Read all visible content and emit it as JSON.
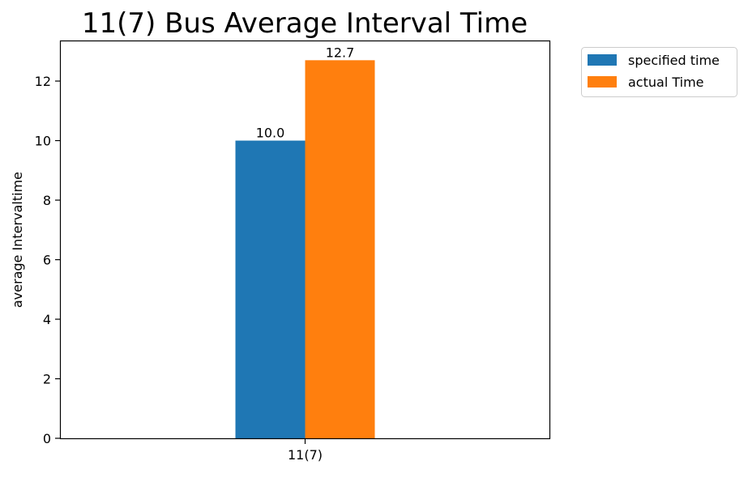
{
  "chart_data": {
    "type": "bar",
    "title": "11(7) Bus Average Interval Time",
    "xlabel": "",
    "ylabel": "average Intervaltime",
    "categories": [
      "11(7)"
    ],
    "series": [
      {
        "name": "specified time",
        "values": [
          10.0
        ],
        "value_labels": [
          "10.0"
        ],
        "color": "#1f77b4"
      },
      {
        "name": "actual Time",
        "values": [
          12.7
        ],
        "value_labels": [
          "12.7"
        ],
        "color": "#ff7f0e"
      }
    ],
    "ylim": [
      0,
      13.335
    ],
    "yticks": [
      0,
      2,
      4,
      6,
      8,
      10,
      12
    ],
    "ytick_labels": [
      "0",
      "2",
      "4",
      "6",
      "8",
      "10",
      "12"
    ],
    "grid": false,
    "legend_position": "outside-top-right"
  }
}
